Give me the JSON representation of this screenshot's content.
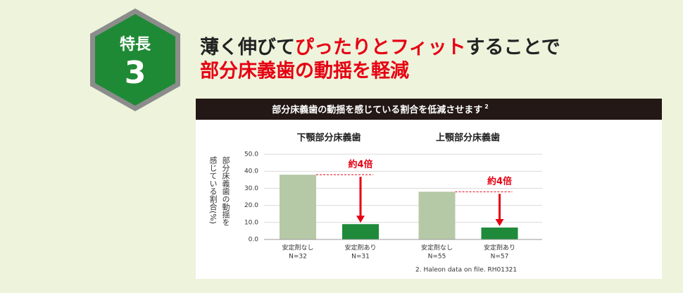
{
  "badge": {
    "label": "特長",
    "number": "3"
  },
  "headline": {
    "line1": [
      "薄く伸びて",
      "ぴったりとフィット",
      "することで"
    ],
    "line2": "部分床義歯の動揺を軽減"
  },
  "panel": {
    "title": "部分床義歯の動揺を感じている割合を低減させます",
    "footnote_ref": "2",
    "ylabel": [
      "部分床義歯の動揺を",
      "感じている割合(%)"
    ],
    "footnote": "2. Haleon data on file. RH01321"
  },
  "chart_data": [
    {
      "type": "bar",
      "title": "下顎部分床義歯",
      "categories": [
        "安定剤なし",
        "安定剤あり"
      ],
      "sample_sizes": [
        "N=32",
        "N=31"
      ],
      "values": [
        38,
        9
      ],
      "colors": [
        "#b5c9a6",
        "#1e8a3a"
      ],
      "annotation": "約4倍",
      "annotation_color": "#e60012",
      "ylim": [
        0,
        50
      ],
      "yticks": [
        {
          "value": 0,
          "label": "0.0"
        },
        {
          "value": 10,
          "label": "10.0"
        },
        {
          "value": 20,
          "label": "20.0"
        },
        {
          "value": 30,
          "label": "30.0"
        },
        {
          "value": 40,
          "label": "40.0"
        },
        {
          "value": 50,
          "label": "50.0"
        }
      ],
      "grid": true
    },
    {
      "type": "bar",
      "title": "上顎部分床義歯",
      "categories": [
        "安定剤なし",
        "安定剤あり"
      ],
      "sample_sizes": [
        "N=55",
        "N=57"
      ],
      "values": [
        28,
        7
      ],
      "colors": [
        "#b5c9a6",
        "#1e8a3a"
      ],
      "annotation": "約4倍",
      "annotation_color": "#e60012",
      "ylim": [
        0,
        50
      ]
    }
  ]
}
